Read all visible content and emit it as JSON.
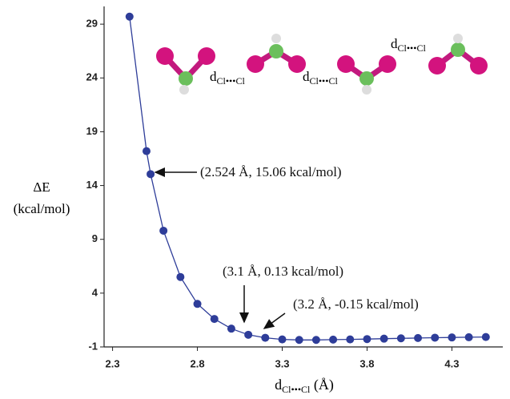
{
  "chart_data": {
    "type": "scatter",
    "x_label": {
      "main": "d",
      "sub": "Cl•••Cl",
      "unit": " (Å)"
    },
    "y_label": [
      "ΔE",
      "(kcal/mol)"
    ],
    "x": [
      2.4,
      2.5,
      2.524,
      2.6,
      2.7,
      2.8,
      2.9,
      3.0,
      3.1,
      3.2,
      3.3,
      3.4,
      3.5,
      3.6,
      3.7,
      3.8,
      3.9,
      4.0,
      4.1,
      4.2,
      4.3,
      4.4,
      4.5
    ],
    "values": [
      29.7,
      17.2,
      15.06,
      9.8,
      5.5,
      3.0,
      1.6,
      0.7,
      0.13,
      -0.15,
      -0.3,
      -0.35,
      -0.35,
      -0.32,
      -0.3,
      -0.27,
      -0.23,
      -0.2,
      -0.17,
      -0.14,
      -0.12,
      -0.1,
      -0.08
    ],
    "color": "#2e3d99",
    "xlim": [
      2.25,
      4.6
    ],
    "xticks": [
      2.3,
      2.8,
      3.3,
      3.8,
      4.3
    ],
    "ylim": [
      -1,
      30.5
    ],
    "yticks": [
      -1,
      4,
      9,
      14,
      19,
      24,
      29
    ],
    "annotations": [
      "(2.524 Å, 15.06 kcal/mol)",
      "(3.1 Å, 0.13 kcal/mol)",
      "(3.2 Å, -0.15 kcal/mol)"
    ],
    "molecule_labels": [
      {
        "main": "d",
        "sub": "Cl•••Cl"
      },
      {
        "main": "d",
        "sub": "Cl•••Cl"
      },
      {
        "main": "d",
        "sub": "Cl•••Cl"
      }
    ]
  }
}
